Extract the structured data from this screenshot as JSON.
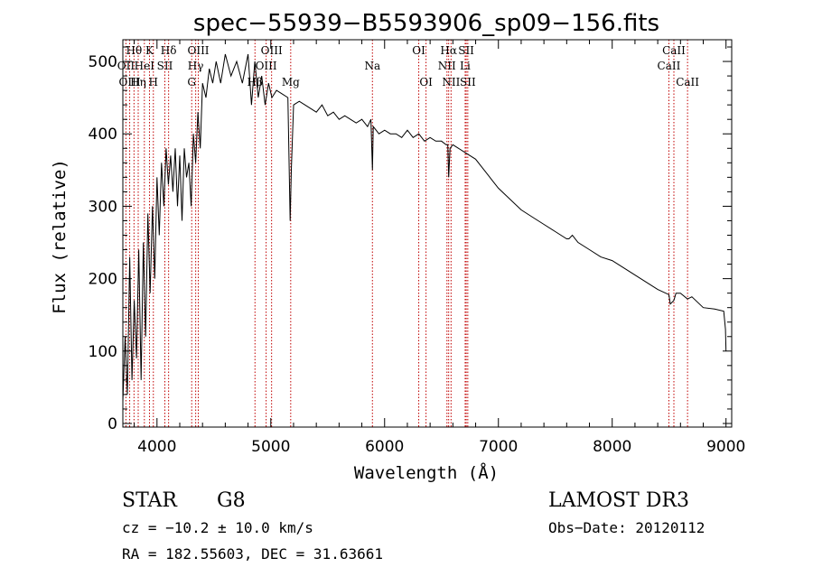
{
  "chart_data": {
    "type": "line",
    "title": "spec−55939−B5593906_sp09−156.fits",
    "xlabel": "Wavelength (Å)",
    "ylabel": "Flux (relative)",
    "xlim": [
      3700,
      9050
    ],
    "ylim": [
      -5,
      530
    ],
    "xticks": [
      4000,
      5000,
      6000,
      7000,
      8000,
      9000
    ],
    "yticks": [
      0,
      100,
      200,
      300,
      400,
      500
    ],
    "series": [
      {
        "name": "spectrum",
        "x": [
          3700,
          3720,
          3740,
          3760,
          3780,
          3800,
          3820,
          3840,
          3860,
          3880,
          3900,
          3920,
          3940,
          3960,
          3980,
          4000,
          4020,
          4040,
          4060,
          4080,
          4100,
          4120,
          4140,
          4160,
          4180,
          4200,
          4220,
          4240,
          4260,
          4280,
          4300,
          4320,
          4340,
          4360,
          4380,
          4400,
          4430,
          4460,
          4490,
          4520,
          4560,
          4600,
          4650,
          4700,
          4750,
          4800,
          4830,
          4860,
          4890,
          4920,
          4950,
          4980,
          5010,
          5050,
          5100,
          5150,
          5170,
          5180,
          5200,
          5250,
          5300,
          5350,
          5400,
          5450,
          5500,
          5550,
          5600,
          5650,
          5700,
          5750,
          5800,
          5850,
          5880,
          5893,
          5900,
          5950,
          6000,
          6050,
          6100,
          6150,
          6200,
          6250,
          6300,
          6350,
          6400,
          6450,
          6500,
          6540,
          6555,
          6563,
          6575,
          6600,
          6650,
          6700,
          6750,
          6800,
          6850,
          6900,
          6950,
          7000,
          7100,
          7200,
          7300,
          7400,
          7500,
          7600,
          7620,
          7650,
          7700,
          7800,
          7900,
          8000,
          8100,
          8200,
          8300,
          8400,
          8498,
          8510,
          8542,
          8560,
          8600,
          8662,
          8700,
          8800,
          8900,
          8980,
          8995,
          9000
        ],
        "values": [
          30,
          120,
          40,
          230,
          60,
          170,
          90,
          240,
          60,
          250,
          120,
          290,
          180,
          300,
          200,
          340,
          260,
          360,
          300,
          380,
          330,
          370,
          320,
          380,
          300,
          370,
          280,
          380,
          340,
          360,
          300,
          400,
          360,
          430,
          380,
          470,
          450,
          490,
          470,
          500,
          470,
          510,
          480,
          500,
          470,
          510,
          440,
          500,
          450,
          480,
          440,
          470,
          450,
          460,
          455,
          450,
          280,
          350,
          440,
          445,
          440,
          435,
          430,
          440,
          425,
          430,
          420,
          425,
          420,
          415,
          420,
          410,
          420,
          350,
          410,
          400,
          405,
          400,
          400,
          395,
          405,
          395,
          400,
          390,
          395,
          390,
          390,
          385,
          385,
          340,
          380,
          385,
          380,
          375,
          370,
          365,
          355,
          345,
          335,
          325,
          310,
          295,
          285,
          275,
          265,
          255,
          255,
          260,
          250,
          240,
          230,
          225,
          215,
          205,
          195,
          185,
          178,
          165,
          170,
          180,
          180,
          172,
          175,
          160,
          158,
          155,
          130,
          100
        ]
      }
    ],
    "lines": [
      {
        "label": "Hθ",
        "x": 3798,
        "row": 1
      },
      {
        "label": "OII",
        "x": 3727,
        "row": 2
      },
      {
        "label": "OIII",
        "x": 3760,
        "row": 3
      },
      {
        "label": "Hη",
        "x": 3835,
        "row": 3
      },
      {
        "label": "HeI",
        "x": 3889,
        "row": 2
      },
      {
        "label": "K",
        "x": 3934,
        "row": 1
      },
      {
        "label": "H",
        "x": 3968,
        "row": 3
      },
      {
        "label": "SII",
        "x": 4069,
        "row": 2
      },
      {
        "label": "Hδ",
        "x": 4102,
        "row": 1
      },
      {
        "label": "OIII",
        "x": 4363,
        "row": 1
      },
      {
        "label": "Hγ",
        "x": 4340,
        "row": 2
      },
      {
        "label": "G",
        "x": 4305,
        "row": 3
      },
      {
        "label": "Hβ",
        "x": 4861,
        "row": 3
      },
      {
        "label": "OIII",
        "x": 5007,
        "row": 1
      },
      {
        "label": "OIII",
        "x": 4959,
        "row": 2
      },
      {
        "label": "Mg",
        "x": 5175,
        "row": 3
      },
      {
        "label": "Na",
        "x": 5893,
        "row": 2
      },
      {
        "label": "OI",
        "x": 6300,
        "row": 1
      },
      {
        "label": "OI",
        "x": 6364,
        "row": 3
      },
      {
        "label": "Hα",
        "x": 6563,
        "row": 1
      },
      {
        "label": "NII",
        "x": 6548,
        "row": 2
      },
      {
        "label": "NII",
        "x": 6584,
        "row": 3
      },
      {
        "label": "SII",
        "x": 6717,
        "row": 1
      },
      {
        "label": "Li",
        "x": 6708,
        "row": 2
      },
      {
        "label": "SII",
        "x": 6731,
        "row": 3
      },
      {
        "label": "CaII",
        "x": 8542,
        "row": 1
      },
      {
        "label": "CaII",
        "x": 8498,
        "row": 2
      },
      {
        "label": "CaII",
        "x": 8662,
        "row": 3
      }
    ]
  },
  "info": {
    "object_class": "STAR",
    "subclass": "G8",
    "survey": "LAMOST DR3",
    "cz": "cz = −10.2 ± 10.0 km/s",
    "obs_date": "Obs−Date: 20120112",
    "coords": "RA = 182.55603, DEC =  31.63661"
  }
}
